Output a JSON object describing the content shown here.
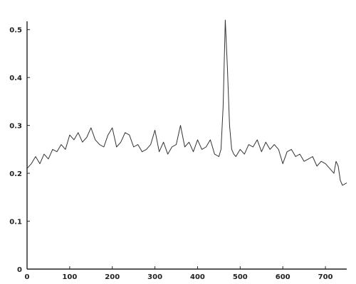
{
  "chart_data": {
    "type": "line",
    "title": "",
    "xlabel": "",
    "ylabel": "",
    "xlim": [
      0,
      750
    ],
    "ylim": [
      0,
      0.55
    ],
    "grid": false,
    "legend": "none",
    "x_ticks": [
      0,
      100,
      200,
      300,
      400,
      500,
      600,
      700
    ],
    "x_tick_labels": [
      "0",
      "100",
      "200",
      "300",
      "400",
      "500",
      "600",
      "700"
    ],
    "y_ticks": [
      0,
      0.1,
      0.2,
      0.3,
      0.4,
      0.5
    ],
    "y_tick_labels": [
      "0",
      "0.1",
      "0.2",
      "0.3",
      "0.4",
      "0.5"
    ],
    "line_color": "#333333",
    "series": [
      {
        "x": [
          0,
          10,
          20,
          30,
          40,
          50,
          60,
          70,
          80,
          90,
          100,
          110,
          120,
          130,
          140,
          150,
          160,
          170,
          180,
          190,
          200,
          210,
          220,
          230,
          240,
          250,
          260,
          270,
          280,
          290,
          300,
          310,
          320,
          330,
          340,
          350,
          360,
          370,
          380,
          390,
          400,
          410,
          420,
          430,
          440,
          450,
          455,
          460,
          465,
          470,
          475,
          480,
          485,
          490,
          500,
          510,
          520,
          530,
          540,
          550,
          560,
          570,
          580,
          590,
          600,
          610,
          620,
          630,
          640,
          650,
          660,
          670,
          680,
          690,
          700,
          710,
          720,
          725,
          730,
          735,
          740,
          750
        ],
        "y": [
          0.21,
          0.22,
          0.235,
          0.22,
          0.24,
          0.23,
          0.25,
          0.245,
          0.26,
          0.25,
          0.28,
          0.27,
          0.285,
          0.265,
          0.275,
          0.295,
          0.27,
          0.26,
          0.255,
          0.28,
          0.295,
          0.255,
          0.265,
          0.285,
          0.28,
          0.255,
          0.26,
          0.245,
          0.25,
          0.26,
          0.29,
          0.245,
          0.265,
          0.24,
          0.255,
          0.26,
          0.3,
          0.255,
          0.265,
          0.245,
          0.27,
          0.25,
          0.255,
          0.27,
          0.24,
          0.235,
          0.25,
          0.34,
          0.52,
          0.42,
          0.3,
          0.25,
          0.24,
          0.235,
          0.25,
          0.24,
          0.26,
          0.255,
          0.27,
          0.245,
          0.265,
          0.25,
          0.26,
          0.25,
          0.22,
          0.245,
          0.25,
          0.235,
          0.24,
          0.225,
          0.23,
          0.235,
          0.215,
          0.225,
          0.22,
          0.21,
          0.2,
          0.225,
          0.215,
          0.185,
          0.175,
          0.18
        ]
      }
    ]
  }
}
